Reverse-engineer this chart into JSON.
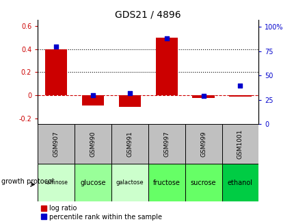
{
  "title": "GDS21 / 4896",
  "samples": [
    "GSM907",
    "GSM990",
    "GSM991",
    "GSM997",
    "GSM999",
    "GSM1001"
  ],
  "protocols": [
    "raffinose",
    "glucose",
    "galactose",
    "fructose",
    "sucrose",
    "ethanol"
  ],
  "log_ratio": [
    0.4,
    -0.09,
    -0.1,
    0.5,
    -0.02,
    -0.01
  ],
  "percentile_rank": [
    80,
    30,
    32,
    88,
    29,
    40
  ],
  "bar_color": "#cc0000",
  "dot_color": "#0000cc",
  "ylim_left": [
    -0.25,
    0.65
  ],
  "ylim_right": [
    0,
    107
  ],
  "yticks_left": [
    -0.2,
    0.0,
    0.2,
    0.4,
    0.6
  ],
  "yticks_right": [
    0,
    25,
    50,
    75,
    100
  ],
  "ytick_labels_left": [
    "-0.2",
    "0",
    "0.2",
    "0.4",
    "0.6"
  ],
  "ytick_labels_right": [
    "0",
    "25",
    "50",
    "75",
    "100%"
  ],
  "hlines": [
    0.4,
    0.2,
    0.0
  ],
  "hline_styles": [
    "dotted",
    "dotted",
    "dashed"
  ],
  "hline_colors": [
    "black",
    "black",
    "#cc0000"
  ],
  "gsm_bg": "#c0c0c0",
  "protocol_row_colors": [
    "#ccffcc",
    "#99ff99",
    "#ccffcc",
    "#66ff66",
    "#66ff66",
    "#00cc44"
  ],
  "growth_protocol_label": "growth protocol",
  "legend_log_ratio": "log ratio",
  "legend_percentile": "percentile rank within the sample"
}
